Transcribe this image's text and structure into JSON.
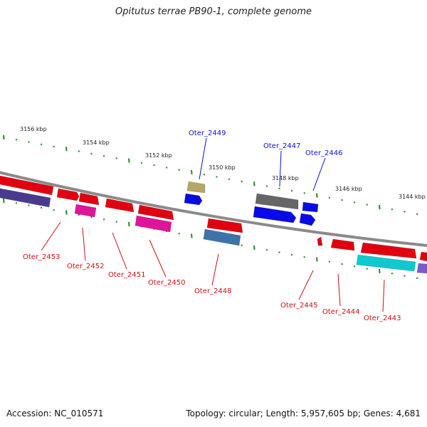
{
  "title": "Opitutus terrae PB90-1, complete genome",
  "footer": {
    "accession": "Accession: NC_010571",
    "summary": "Topology: circular; Length: 5,957,605 bp; Genes: 4,681"
  },
  "colors": {
    "backbone": "#8a8a8a",
    "tick": "#1e8a1e",
    "label_forward": "#1010cc",
    "label_reverse": "#cc1010"
  },
  "scale_labels": [
    "3156 kbp",
    "3154 kbp",
    "3152 kbp",
    "3150 kbp",
    "3148 kbp",
    "3146 kbp",
    "3144 kbp"
  ],
  "gene_labels": {
    "Oter_2449": "Oter_2449",
    "Oter_2447": "Oter_2447",
    "Oter_2446": "Oter_2446",
    "Oter_2453": "Oter_2453",
    "Oter_2452": "Oter_2452",
    "Oter_2451": "Oter_2451",
    "Oter_2450": "Oter_2450",
    "Oter_2448": "Oter_2448",
    "Oter_2445": "Oter_2445",
    "Oter_2444": "Oter_2444",
    "Oter_2443": "Oter_2443"
  }
}
